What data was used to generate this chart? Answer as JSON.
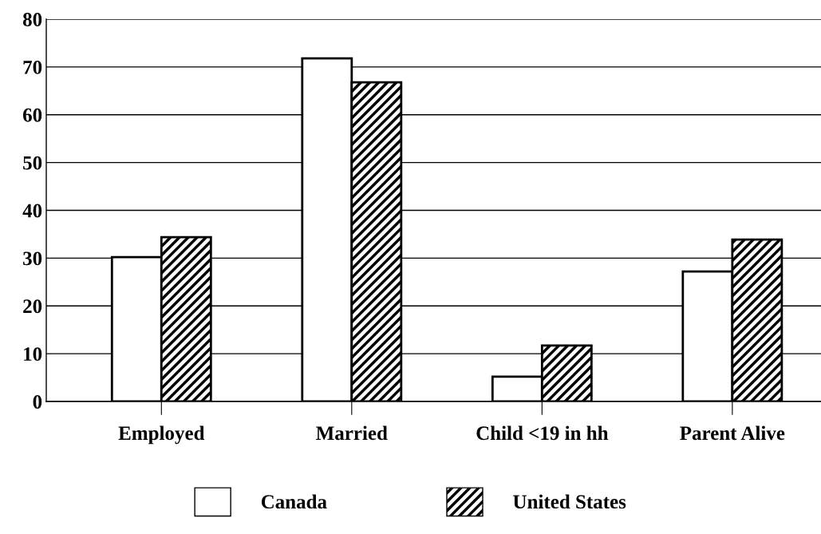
{
  "chart_data": {
    "type": "bar",
    "categories": [
      "Employed",
      "Married",
      "Child <19 in hh",
      "Parent Alive"
    ],
    "series": [
      {
        "name": "Canada",
        "color": "#ffffff",
        "values": [
          30.2,
          71.8,
          5.2,
          27.2
        ]
      },
      {
        "name": "United States",
        "color": "#000000",
        "values": [
          34.4,
          66.8,
          11.7,
          33.9
        ]
      }
    ],
    "ylim": [
      0,
      80
    ],
    "yticks": [
      0,
      10,
      20,
      30,
      40,
      50,
      60,
      70,
      80
    ],
    "grid": "y",
    "legend": "bottom"
  }
}
